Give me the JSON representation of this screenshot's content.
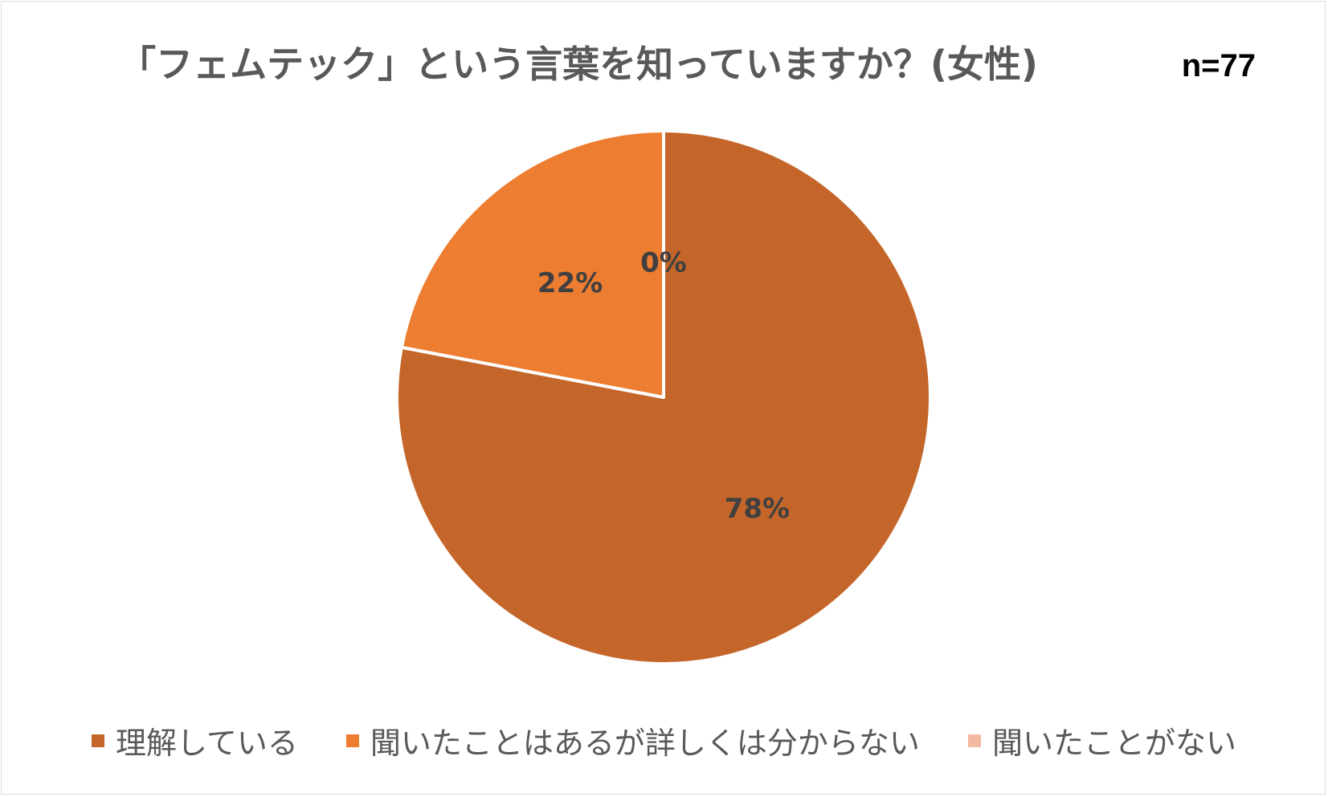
{
  "title": "「フェムテック」という言葉を知っていますか？(女性)",
  "sample_size": "n=77",
  "colors": {
    "series_1": "#C4652A",
    "series_2": "#ED7D31",
    "series_3": "#F4B9A0",
    "label_text": "#404040",
    "title_text": "#595959"
  },
  "chart_data": {
    "type": "pie",
    "title": "「フェムテック」という言葉を知っていますか？(女性)",
    "categories": [
      "理解している",
      "聞いたことはあるが詳しくは分からない",
      "聞いたことがない"
    ],
    "values": [
      78,
      22,
      0
    ],
    "data_labels": [
      "78%",
      "22%",
      "0%"
    ],
    "legend_position": "bottom"
  }
}
